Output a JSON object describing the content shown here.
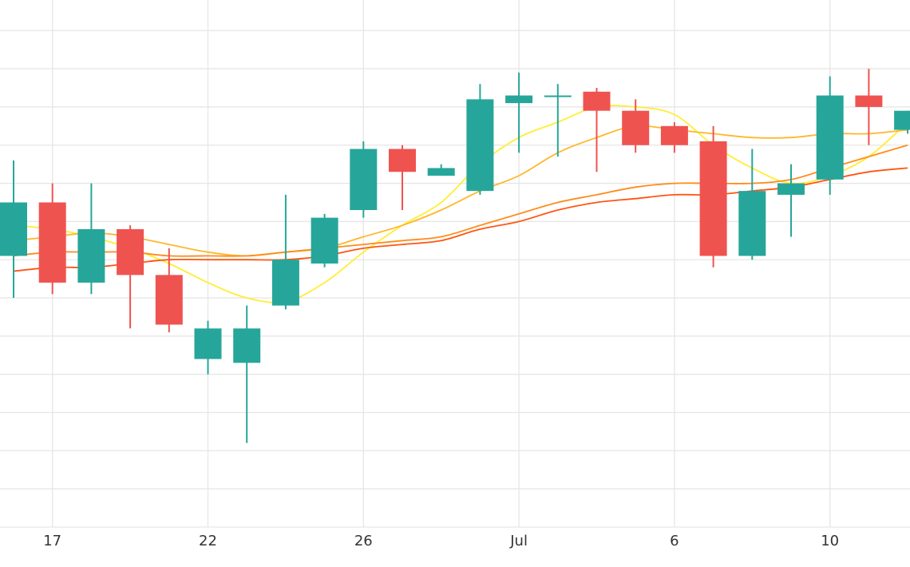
{
  "chart_data": {
    "type": "candlestick",
    "x_tick_labels": [
      {
        "label": "17",
        "index": 1
      },
      {
        "label": "22",
        "index": 5
      },
      {
        "label": "26",
        "index": 9
      },
      {
        "label": "Jul",
        "index": 13
      },
      {
        "label": "6",
        "index": 17
      },
      {
        "label": "10",
        "index": 21
      }
    ],
    "ylim": [
      1,
      14.8
    ],
    "grid": true,
    "y_gridlines": [
      1.0,
      2.0,
      3.0,
      4.0,
      5.0,
      6.0,
      7.0,
      8.0,
      9.0,
      10.0,
      11.0,
      12.0,
      13.0,
      14.0
    ],
    "x_gridline_indices": [
      1,
      5,
      9,
      13,
      17,
      21
    ],
    "up_color": "#26a69a",
    "down_color": "#ef5350",
    "candles": [
      {
        "index": 0,
        "open": 8.1,
        "high": 10.6,
        "low": 7.0,
        "close": 9.5
      },
      {
        "index": 1,
        "open": 9.5,
        "high": 10.0,
        "low": 7.1,
        "close": 7.4
      },
      {
        "index": 2,
        "open": 7.4,
        "high": 10.0,
        "low": 7.1,
        "close": 8.8
      },
      {
        "index": 3,
        "open": 8.8,
        "high": 8.9,
        "low": 6.2,
        "close": 7.6
      },
      {
        "index": 4,
        "open": 7.6,
        "high": 8.3,
        "low": 6.1,
        "close": 6.3
      },
      {
        "index": 5,
        "open": 5.4,
        "high": 6.4,
        "low": 5.0,
        "close": 6.2
      },
      {
        "index": 6,
        "open": 5.3,
        "high": 6.8,
        "low": 3.2,
        "close": 6.2
      },
      {
        "index": 7,
        "open": 6.8,
        "high": 9.7,
        "low": 6.7,
        "close": 8.0
      },
      {
        "index": 8,
        "open": 7.9,
        "high": 9.2,
        "low": 7.8,
        "close": 9.1
      },
      {
        "index": 9,
        "open": 9.3,
        "high": 11.1,
        "low": 9.1,
        "close": 10.9
      },
      {
        "index": 10,
        "open": 10.9,
        "high": 11.0,
        "low": 9.3,
        "close": 10.3
      },
      {
        "index": 11,
        "open": 10.2,
        "high": 10.5,
        "low": 10.2,
        "close": 10.4
      },
      {
        "index": 12,
        "open": 9.8,
        "high": 12.6,
        "low": 9.7,
        "close": 12.2
      },
      {
        "index": 13,
        "open": 12.1,
        "high": 12.9,
        "low": 10.8,
        "close": 12.3
      },
      {
        "index": 14,
        "open": 12.3,
        "high": 12.6,
        "low": 10.7,
        "close": 12.3
      },
      {
        "index": 15,
        "open": 12.4,
        "high": 12.5,
        "low": 10.3,
        "close": 11.9
      },
      {
        "index": 16,
        "open": 11.9,
        "high": 12.2,
        "low": 10.8,
        "close": 11.0
      },
      {
        "index": 17,
        "open": 11.5,
        "high": 11.6,
        "low": 10.8,
        "close": 11.0
      },
      {
        "index": 18,
        "open": 11.1,
        "high": 11.5,
        "low": 7.8,
        "close": 8.1
      },
      {
        "index": 19,
        "open": 8.1,
        "high": 10.9,
        "low": 8.0,
        "close": 9.8
      },
      {
        "index": 20,
        "open": 9.7,
        "high": 10.5,
        "low": 8.6,
        "close": 10.0
      },
      {
        "index": 21,
        "open": 10.1,
        "high": 12.8,
        "low": 9.7,
        "close": 12.3
      },
      {
        "index": 22,
        "open": 12.3,
        "high": 13.0,
        "low": 11.0,
        "close": 12.0
      },
      {
        "index": 23,
        "open": 11.4,
        "high": 11.9,
        "low": 11.3,
        "close": 11.9
      }
    ],
    "moving_averages": [
      {
        "color": "#ffee33",
        "values": [
          [
            0,
            8.9
          ],
          [
            1,
            8.8
          ],
          [
            2,
            8.6
          ],
          [
            3,
            8.3
          ],
          [
            4,
            7.9
          ],
          [
            5,
            7.4
          ],
          [
            6,
            7.0
          ],
          [
            7,
            6.9
          ],
          [
            8,
            7.4
          ],
          [
            9,
            8.2
          ],
          [
            10,
            8.9
          ],
          [
            11,
            9.5
          ],
          [
            12,
            10.5
          ],
          [
            13,
            11.2
          ],
          [
            14,
            11.6
          ],
          [
            15,
            12.0
          ],
          [
            16,
            12.0
          ],
          [
            17,
            11.8
          ],
          [
            18,
            11.0
          ],
          [
            19,
            10.4
          ],
          [
            20,
            10.0
          ],
          [
            21,
            10.2
          ],
          [
            22,
            10.7
          ],
          [
            23,
            11.6
          ]
        ]
      },
      {
        "color": "#ffb72b",
        "values": [
          [
            0,
            8.5
          ],
          [
            1,
            8.6
          ],
          [
            2,
            8.7
          ],
          [
            3,
            8.6
          ],
          [
            4,
            8.4
          ],
          [
            5,
            8.2
          ],
          [
            6,
            8.1
          ],
          [
            7,
            8.2
          ],
          [
            8,
            8.3
          ],
          [
            9,
            8.6
          ],
          [
            10,
            8.9
          ],
          [
            11,
            9.3
          ],
          [
            12,
            9.8
          ],
          [
            13,
            10.2
          ],
          [
            14,
            10.8
          ],
          [
            15,
            11.2
          ],
          [
            16,
            11.5
          ],
          [
            17,
            11.4
          ],
          [
            18,
            11.3
          ],
          [
            19,
            11.2
          ],
          [
            20,
            11.2
          ],
          [
            21,
            11.3
          ],
          [
            22,
            11.3
          ],
          [
            23,
            11.4
          ]
        ]
      },
      {
        "color": "#ff8c1a",
        "values": [
          [
            0,
            8.1
          ],
          [
            1,
            8.2
          ],
          [
            2,
            8.2
          ],
          [
            3,
            8.2
          ],
          [
            4,
            8.1
          ],
          [
            5,
            8.1
          ],
          [
            6,
            8.1
          ],
          [
            7,
            8.2
          ],
          [
            8,
            8.3
          ],
          [
            9,
            8.4
          ],
          [
            10,
            8.5
          ],
          [
            11,
            8.6
          ],
          [
            12,
            8.9
          ],
          [
            13,
            9.2
          ],
          [
            14,
            9.5
          ],
          [
            15,
            9.7
          ],
          [
            16,
            9.9
          ],
          [
            17,
            10.0
          ],
          [
            18,
            10.0
          ],
          [
            19,
            10.0
          ],
          [
            20,
            10.1
          ],
          [
            21,
            10.4
          ],
          [
            22,
            10.7
          ],
          [
            23,
            11.0
          ]
        ]
      },
      {
        "color": "#ff5511",
        "values": [
          [
            0,
            7.7
          ],
          [
            1,
            7.8
          ],
          [
            2,
            7.8
          ],
          [
            3,
            7.9
          ],
          [
            4,
            8.0
          ],
          [
            5,
            8.0
          ],
          [
            6,
            8.0
          ],
          [
            7,
            8.0
          ],
          [
            8,
            8.1
          ],
          [
            9,
            8.3
          ],
          [
            10,
            8.4
          ],
          [
            11,
            8.5
          ],
          [
            12,
            8.8
          ],
          [
            13,
            9.0
          ],
          [
            14,
            9.3
          ],
          [
            15,
            9.5
          ],
          [
            16,
            9.6
          ],
          [
            17,
            9.7
          ],
          [
            18,
            9.7
          ],
          [
            19,
            9.8
          ],
          [
            20,
            9.9
          ],
          [
            21,
            10.1
          ],
          [
            22,
            10.3
          ],
          [
            23,
            10.4
          ]
        ]
      }
    ]
  }
}
